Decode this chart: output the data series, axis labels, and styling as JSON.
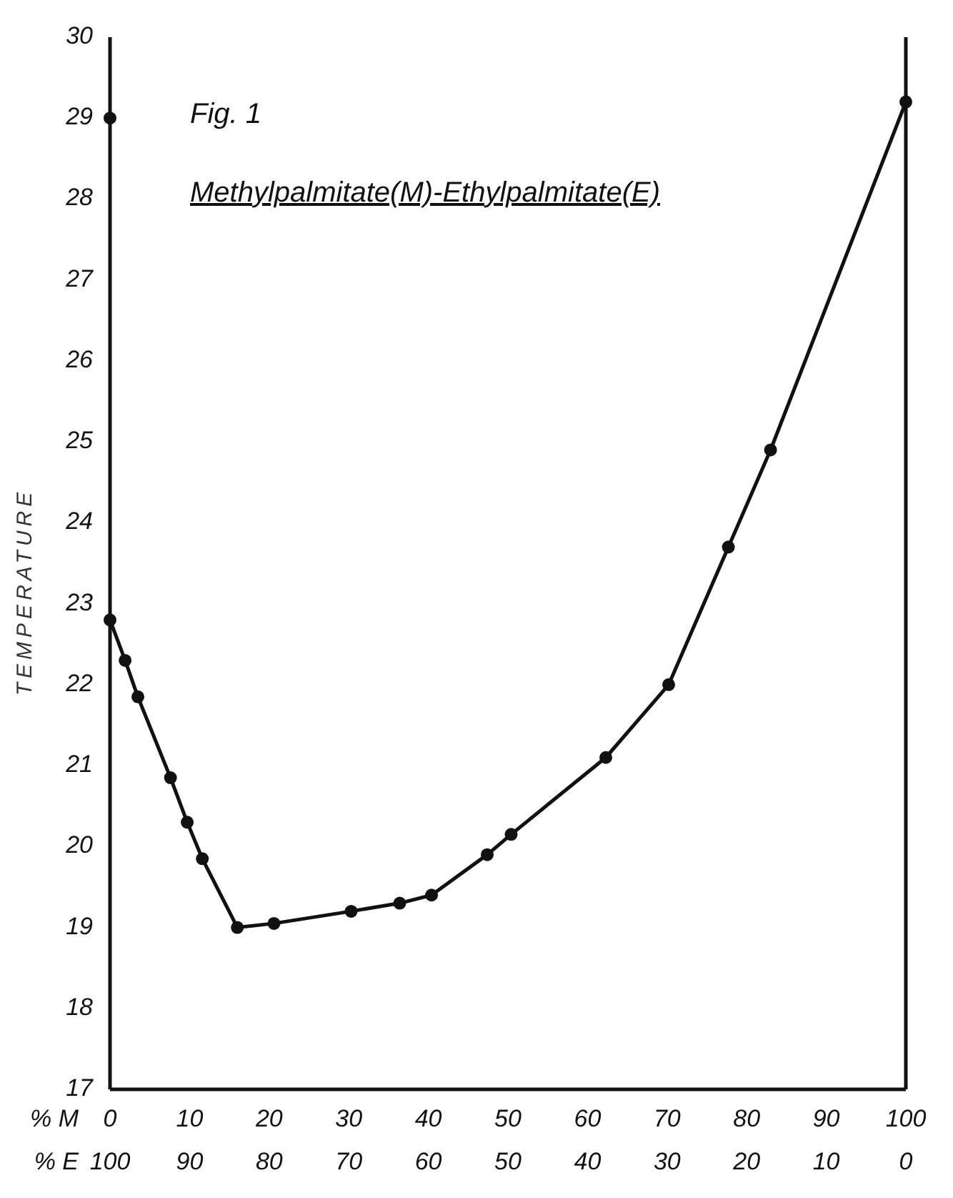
{
  "chart_data": {
    "type": "line",
    "title": "Fig. 1",
    "subtitle": "Methylpalmitate(M)-Ethylpalmitate(E)",
    "xlabel": "% M",
    "x2label": "% E",
    "ylabel": "TEMPERATURE",
    "xlim": [
      0,
      100
    ],
    "xticks": [
      0,
      10,
      20,
      30,
      40,
      50,
      60,
      70,
      80,
      90,
      100
    ],
    "x2lim": [
      100,
      0
    ],
    "x2ticks": [
      100,
      90,
      80,
      70,
      60,
      50,
      40,
      30,
      20,
      10,
      0
    ],
    "ylim": [
      17,
      30
    ],
    "yticks": [
      17,
      18,
      19,
      20,
      21,
      22,
      23,
      24,
      25,
      26,
      27,
      28,
      29,
      30
    ],
    "grid": false,
    "marker": "circle",
    "line_style": "solid",
    "series": [
      {
        "color": "#111111",
        "x": [
          0,
          1.9,
          3.5,
          7.6,
          9.7,
          11.6,
          16,
          20.6,
          30.3,
          36.4,
          40.4,
          47.4,
          50.4,
          62.3,
          70.2,
          77.7,
          83,
          100
        ],
        "values": [
          22.8,
          22.3,
          21.85,
          20.85,
          20.3,
          19.85,
          19,
          19.05,
          19.2,
          19.3,
          19.4,
          19.9,
          20.15,
          21.1,
          22,
          23.7,
          24.9,
          29.2
        ]
      },
      {
        "type": "scatter",
        "color": "#111111",
        "x": [
          0
        ],
        "values": [
          29
        ]
      }
    ]
  }
}
